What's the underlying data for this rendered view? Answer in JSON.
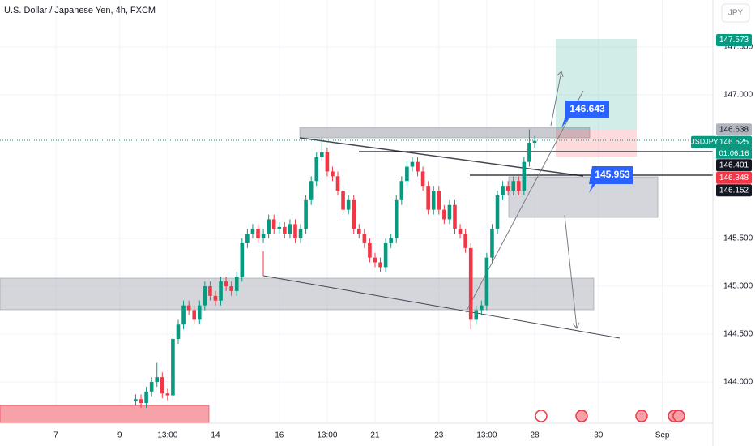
{
  "chart_data": {
    "type": "candlestick",
    "title": "U.S. Dollar / Japanese Yen, 4h, FXCM",
    "currency": "JPY",
    "symbol": "USDJPY",
    "countdown": "01:06:16",
    "up_color": "#089981",
    "down_color": "#f23645",
    "grid": true,
    "xlim": [
      -0.5,
      133.5
    ],
    "ylim": [
      143.585,
      147.992
    ],
    "xticks": [
      {
        "value": 10,
        "label": "7"
      },
      {
        "value": 22,
        "label": "9"
      },
      {
        "value": 31,
        "label": "13:00"
      },
      {
        "value": 40,
        "label": "14"
      },
      {
        "value": 52,
        "label": "16"
      },
      {
        "value": 61,
        "label": "13:00"
      },
      {
        "value": 70,
        "label": "21"
      },
      {
        "value": 82,
        "label": "23"
      },
      {
        "value": 91,
        "label": "13:00"
      },
      {
        "value": 100,
        "label": "28"
      },
      {
        "value": 112,
        "label": "30"
      },
      {
        "value": 124,
        "label": "Sep"
      }
    ],
    "yticks": [
      {
        "value": 144,
        "label": "144.000"
      },
      {
        "value": 144.5,
        "label": "144.500"
      },
      {
        "value": 145,
        "label": "145.000"
      },
      {
        "value": 145.5,
        "label": "145.500"
      },
      {
        "value": 147,
        "label": "147.000"
      },
      {
        "value": 147.5,
        "label": "147.500"
      }
    ],
    "x": [
      25,
      26,
      27,
      28,
      29,
      30,
      31,
      32,
      33,
      34,
      35,
      36,
      37,
      38,
      39,
      40,
      41,
      42,
      43,
      44,
      45,
      46,
      47,
      48,
      49,
      50,
      51,
      52,
      53,
      54,
      55,
      56,
      57,
      58,
      59,
      60,
      61,
      62,
      63,
      64,
      65,
      66,
      67,
      68,
      69,
      70,
      71,
      72,
      73,
      74,
      75,
      76,
      77,
      78,
      79,
      80,
      81,
      82,
      83,
      84,
      85,
      86,
      87,
      88,
      89,
      90,
      91,
      92,
      93,
      94,
      95,
      96,
      97,
      98,
      99,
      100
    ],
    "open": [
      143.8,
      143.82,
      143.78,
      143.9,
      144.0,
      144.05,
      143.88,
      143.86,
      144.45,
      144.6,
      144.8,
      144.75,
      144.65,
      144.8,
      145.0,
      144.9,
      144.85,
      145.05,
      145.0,
      144.95,
      145.1,
      145.45,
      145.55,
      145.6,
      145.5,
      145.55,
      145.7,
      145.6,
      145.62,
      145.55,
      145.65,
      145.5,
      145.6,
      145.9,
      146.1,
      146.35,
      146.4,
      146.2,
      146.15,
      146.0,
      145.8,
      145.9,
      145.6,
      145.55,
      145.45,
      145.3,
      145.25,
      145.2,
      145.45,
      145.5,
      145.9,
      146.1,
      146.25,
      146.3,
      146.2,
      146.05,
      145.8,
      146.0,
      145.8,
      145.7,
      145.85,
      145.6,
      145.55,
      145.4,
      144.65,
      144.75,
      144.8,
      145.3,
      145.6,
      145.95,
      146.05,
      146.0,
      146.1,
      146.0,
      146.3,
      146.5
    ],
    "high": [
      143.87,
      143.87,
      143.95,
      144.05,
      144.2,
      144.1,
      143.93,
      144.5,
      144.65,
      144.85,
      144.85,
      144.8,
      144.85,
      145.05,
      145.05,
      144.95,
      145.1,
      145.1,
      145.05,
      145.15,
      145.5,
      145.6,
      145.65,
      145.65,
      145.6,
      145.75,
      145.75,
      145.67,
      145.67,
      145.7,
      145.7,
      145.65,
      145.95,
      146.15,
      146.4,
      146.55,
      146.45,
      146.25,
      146.2,
      146.05,
      145.95,
      145.95,
      145.65,
      145.6,
      145.5,
      145.35,
      145.3,
      145.5,
      145.55,
      145.95,
      146.15,
      146.3,
      146.35,
      146.35,
      146.25,
      146.1,
      146.05,
      146.05,
      145.85,
      145.9,
      145.9,
      145.65,
      145.6,
      145.45,
      144.8,
      144.85,
      145.35,
      145.65,
      146.0,
      146.1,
      146.1,
      146.15,
      146.15,
      146.35,
      146.64,
      146.57
    ],
    "low": [
      143.75,
      143.73,
      143.73,
      143.85,
      143.95,
      143.83,
      143.81,
      143.81,
      144.4,
      144.55,
      144.7,
      144.6,
      144.6,
      144.75,
      144.85,
      144.8,
      144.8,
      144.95,
      144.9,
      144.9,
      145.05,
      145.4,
      145.5,
      145.45,
      145.45,
      145.5,
      145.55,
      145.55,
      145.5,
      145.5,
      145.45,
      145.45,
      145.55,
      145.85,
      146.05,
      146.3,
      146.15,
      146.1,
      145.95,
      145.75,
      145.75,
      145.55,
      145.5,
      145.4,
      145.25,
      145.2,
      145.15,
      145.15,
      145.4,
      145.45,
      145.85,
      146.05,
      146.2,
      146.15,
      146.0,
      145.75,
      145.75,
      145.75,
      145.65,
      145.65,
      145.55,
      145.5,
      145.35,
      144.55,
      144.6,
      144.7,
      144.75,
      145.25,
      145.55,
      145.9,
      145.95,
      145.95,
      145.95,
      145.95,
      146.25,
      146.45
    ],
    "close": [
      143.82,
      143.78,
      143.9,
      144.0,
      144.05,
      143.88,
      143.86,
      144.45,
      144.6,
      144.8,
      144.75,
      144.65,
      144.8,
      145.0,
      144.9,
      144.85,
      145.05,
      145.0,
      144.95,
      145.1,
      145.45,
      145.55,
      145.6,
      145.5,
      145.55,
      145.7,
      145.6,
      145.62,
      145.55,
      145.65,
      145.5,
      145.6,
      145.9,
      146.1,
      146.35,
      146.4,
      146.2,
      146.15,
      146.0,
      145.8,
      145.9,
      145.6,
      145.55,
      145.45,
      145.3,
      145.25,
      145.2,
      145.45,
      145.5,
      145.9,
      146.1,
      146.25,
      146.3,
      146.2,
      146.05,
      145.8,
      146.0,
      145.8,
      145.7,
      145.85,
      145.6,
      145.55,
      145.4,
      144.65,
      144.75,
      144.8,
      145.3,
      145.6,
      145.95,
      146.05,
      146.0,
      146.1,
      146.0,
      146.3,
      146.5,
      146.52
    ],
    "price_tags": [
      {
        "value": 147.573,
        "color": "#089981"
      },
      {
        "value": 146.638,
        "color": "#b2b5be"
      },
      {
        "value": 146.525,
        "color": "#089981"
      },
      {
        "value": 146.401,
        "color": "#131722"
      },
      {
        "value": 146.348,
        "color": "#f23645"
      },
      {
        "value": 146.152,
        "color": "#131722"
      }
    ],
    "callouts": [
      146.643,
      145.953
    ]
  }
}
